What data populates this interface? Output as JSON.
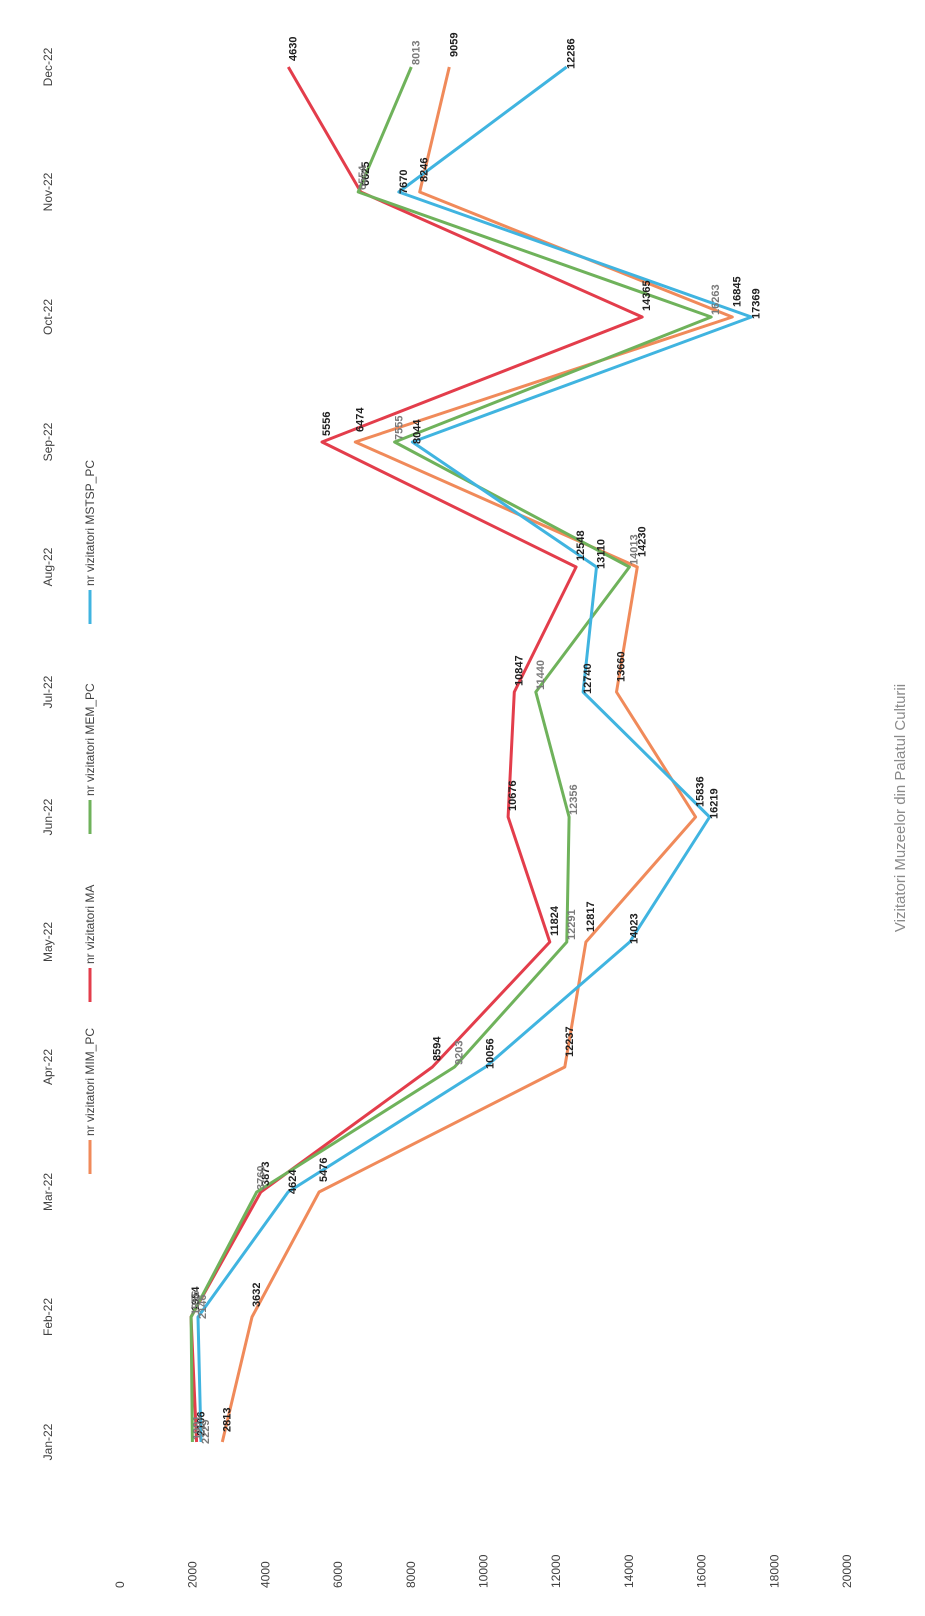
{
  "chart_data": {
    "type": "line",
    "title": "Vizitatori Muzeelor din Palatul Culturii",
    "categories": [
      "Jan-22",
      "Feb-22",
      "Mar-22",
      "Apr-22",
      "May-22",
      "Jun-22",
      "Jul-22",
      "Aug-22",
      "Sep-22",
      "Oct-22",
      "Nov-22",
      "Dec-22"
    ],
    "y_ticks": [
      "0",
      "2000",
      "4000",
      "6000",
      "8000",
      "10000",
      "12000",
      "14000",
      "16000",
      "18000",
      "20000"
    ],
    "ylim": [
      0,
      20000
    ],
    "grid": false,
    "legend_position": "bottom",
    "series": [
      {
        "name": "nr vizitatori MIM_PC",
        "color": "#f08a5a",
        "values": [
          2813,
          3632,
          5476,
          12237,
          12817,
          15836,
          13660,
          14230,
          6474,
          16845,
          8246,
          9059
        ],
        "labels": [
          "2813",
          "3632",
          "5476",
          "12237",
          "12817",
          "15836",
          "13660",
          "14230",
          "6474",
          "16845",
          "8246",
          "9059"
        ]
      },
      {
        "name": "nr vizitatori MA",
        "color": "#e33d4b",
        "values": [
          2106,
          1954,
          3873,
          8594,
          11824,
          10676,
          10847,
          12548,
          5556,
          14365,
          6625,
          4630
        ],
        "labels": [
          "2106",
          "1954",
          "3873",
          "8594",
          "11824",
          "10676",
          "10847",
          "12548",
          "5556",
          "14365",
          "6625",
          "4630"
        ]
      },
      {
        "name": "nr vizitatori MEM_PC",
        "color": "#6fb25b",
        "values": [
          1991,
          1956,
          3760,
          9203,
          12291,
          12356,
          11440,
          14013,
          7555,
          16263,
          6554,
          8013
        ],
        "labels": [
          "1991",
          "1956",
          "3760",
          "9203",
          "12291",
          "12356",
          "11440",
          "14013",
          "7555",
          "16263",
          "6554",
          "8013"
        ]
      },
      {
        "name": "nr vizitatori MSTSP_PC",
        "color": "#40b4e0",
        "values": [
          2229,
          2146,
          4624,
          10056,
          14023,
          16219,
          12740,
          13110,
          8044,
          17369,
          7670,
          12286
        ],
        "labels": [
          "2229",
          "2146",
          "4624",
          "10056",
          "14023",
          "16219",
          "12740",
          "13110",
          "8044",
          "17369",
          "7670",
          "12286"
        ]
      }
    ]
  }
}
